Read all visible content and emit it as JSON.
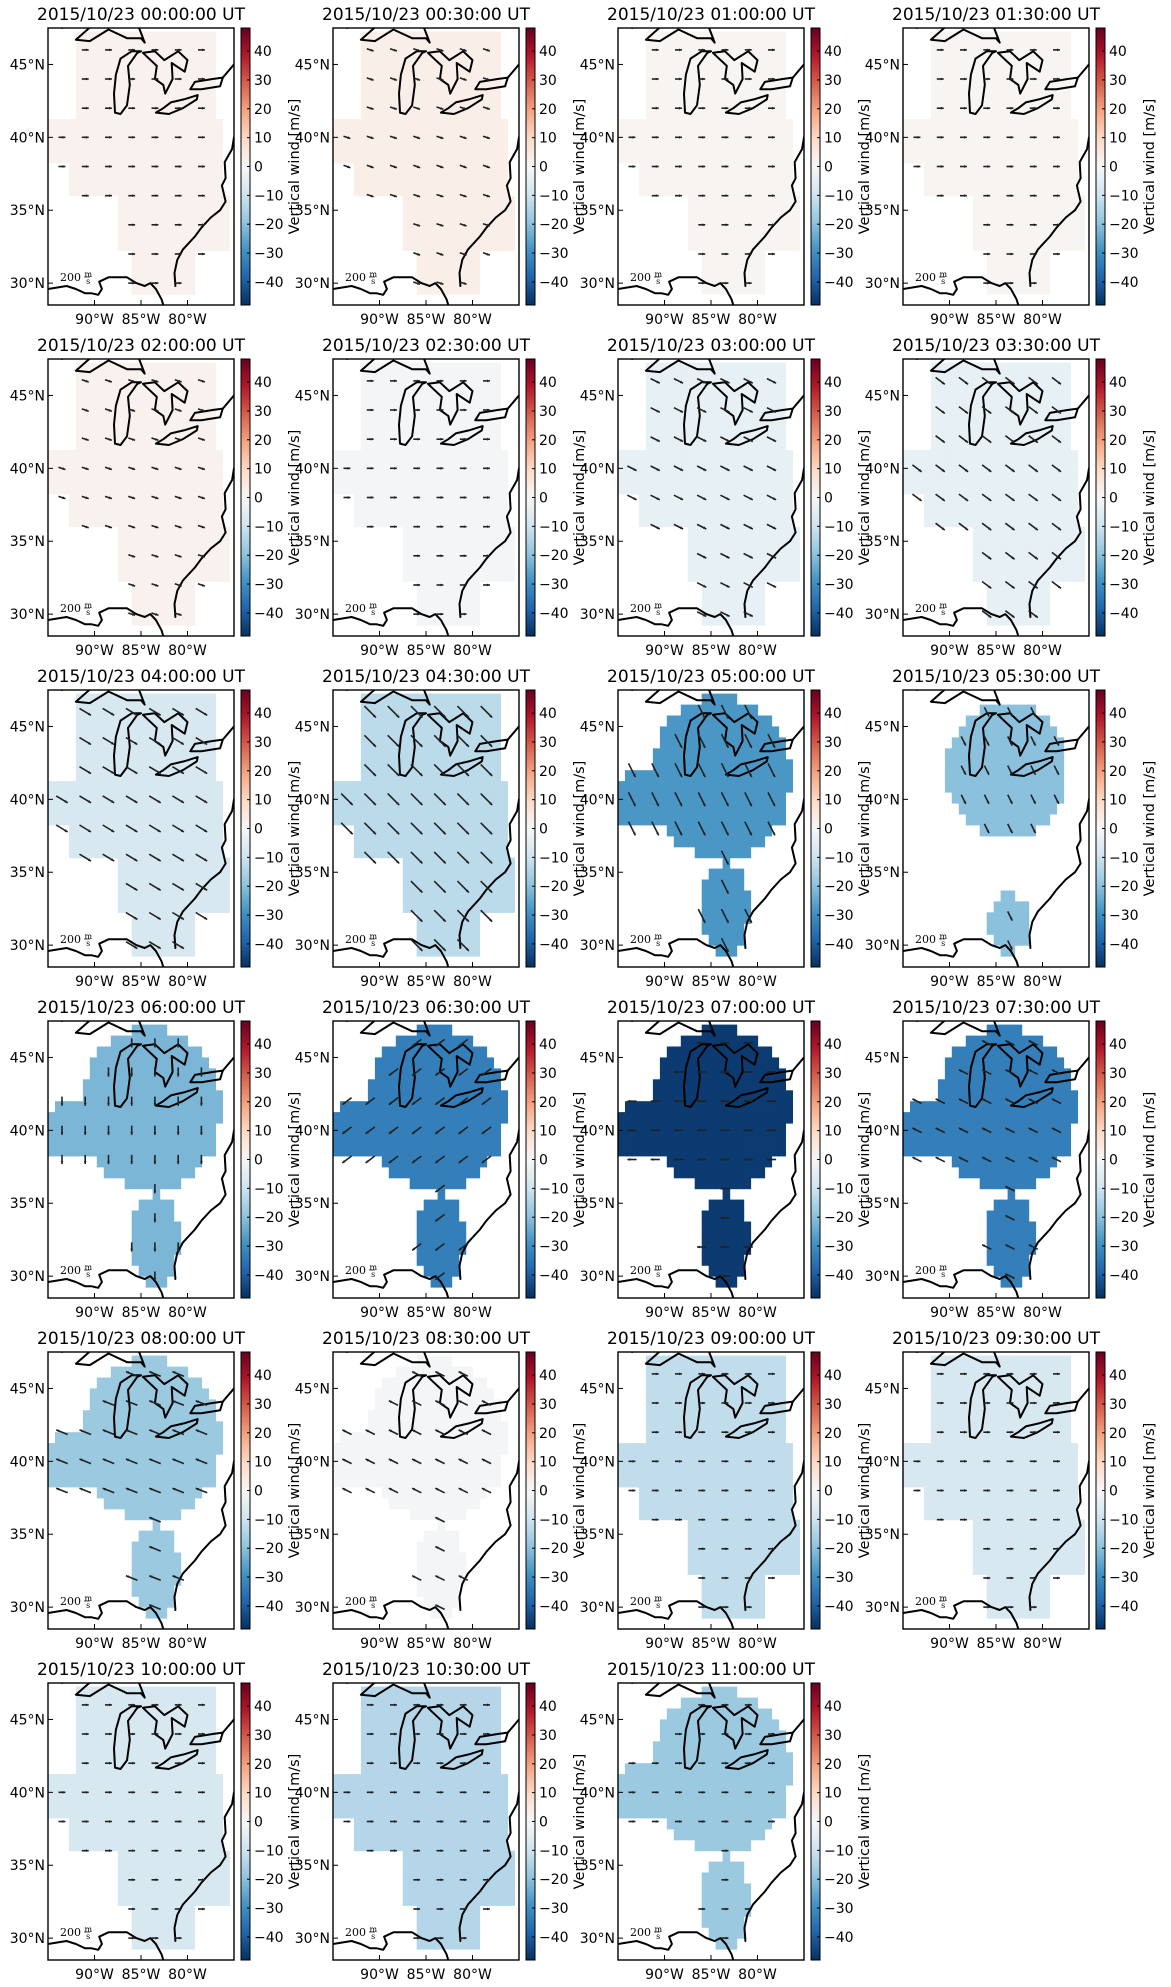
{
  "figure": {
    "colorbar": {
      "title": "Vertical wind [m/s]",
      "ticks": [
        "40",
        "30",
        "20",
        "10",
        "0",
        "−10",
        "−20",
        "−30",
        "−40"
      ],
      "range": [
        -48,
        48
      ],
      "colormap": [
        "#053061",
        "#2166ac",
        "#4393c3",
        "#92c5de",
        "#d1e5f0",
        "#f7f7f7",
        "#fddbc7",
        "#f4a582",
        "#d6604d",
        "#b2182b",
        "#67001f"
      ]
    },
    "x_ticks": [
      "90°W",
      "85°W",
      "80°W"
    ],
    "y_ticks": [
      "45°N",
      "40°N",
      "35°N",
      "30°N"
    ],
    "scale_label": "200 m/s",
    "scale_value": "200",
    "scale_unit_num": "m",
    "scale_unit_den": "s"
  },
  "chart_data": [
    {
      "type": "heatmap",
      "title": "2015/10/23 00:00:00 UT",
      "vertical_wind_ms": 2,
      "region": "full",
      "wind_u": 3,
      "wind_v": 0
    },
    {
      "type": "heatmap",
      "title": "2015/10/23 00:30:00 UT",
      "vertical_wind_ms": 3,
      "region": "full",
      "wind_u": 3,
      "wind_v": -1
    },
    {
      "type": "heatmap",
      "title": "2015/10/23 01:00:00 UT",
      "vertical_wind_ms": 1,
      "region": "full",
      "wind_u": 3,
      "wind_v": 0
    },
    {
      "type": "heatmap",
      "title": "2015/10/23 01:30:00 UT",
      "vertical_wind_ms": 1,
      "region": "full",
      "wind_u": 3,
      "wind_v": 0
    },
    {
      "type": "heatmap",
      "title": "2015/10/23 02:00:00 UT",
      "vertical_wind_ms": 2,
      "region": "full",
      "wind_u": 3,
      "wind_v": -1
    },
    {
      "type": "heatmap",
      "title": "2015/10/23 02:30:00 UT",
      "vertical_wind_ms": -1,
      "region": "full",
      "wind_u": 3,
      "wind_v": 0
    },
    {
      "type": "heatmap",
      "title": "2015/10/23 03:00:00 UT",
      "vertical_wind_ms": -4,
      "region": "full",
      "wind_u": 4,
      "wind_v": -2
    },
    {
      "type": "heatmap",
      "title": "2015/10/23 03:30:00 UT",
      "vertical_wind_ms": -4,
      "region": "full",
      "wind_u": 4,
      "wind_v": -3
    },
    {
      "type": "heatmap",
      "title": "2015/10/23 04:00:00 UT",
      "vertical_wind_ms": -8,
      "region": "full",
      "wind_u": 5,
      "wind_v": -3
    },
    {
      "type": "heatmap",
      "title": "2015/10/23 04:30:00 UT",
      "vertical_wind_ms": -13,
      "region": "full",
      "wind_u": 5,
      "wind_v": -5
    },
    {
      "type": "heatmap",
      "title": "2015/10/23 05:00:00 UT",
      "vertical_wind_ms": -28,
      "region": "split",
      "wind_u": 3,
      "wind_v": -6
    },
    {
      "type": "heatmap",
      "title": "2015/10/23 05:30:00 UT",
      "vertical_wind_ms": -20,
      "region": "split-small",
      "wind_u": 2,
      "wind_v": -4
    },
    {
      "type": "heatmap",
      "title": "2015/10/23 06:00:00 UT",
      "vertical_wind_ms": -22,
      "region": "split",
      "wind_u": 0,
      "wind_v": -4
    },
    {
      "type": "heatmap",
      "title": "2015/10/23 06:30:00 UT",
      "vertical_wind_ms": -33,
      "region": "split",
      "wind_u": -4,
      "wind_v": -3
    },
    {
      "type": "heatmap",
      "title": "2015/10/23 07:00:00 UT",
      "vertical_wind_ms": -46,
      "region": "split",
      "wind_u": -4,
      "wind_v": 0
    },
    {
      "type": "heatmap",
      "title": "2015/10/23 07:30:00 UT",
      "vertical_wind_ms": -33,
      "region": "split",
      "wind_u": -4,
      "wind_v": 2
    },
    {
      "type": "heatmap",
      "title": "2015/10/23 08:00:00 UT",
      "vertical_wind_ms": -18,
      "region": "split",
      "wind_u": -5,
      "wind_v": 2
    },
    {
      "type": "heatmap",
      "title": "2015/10/23 08:30:00 UT",
      "vertical_wind_ms": -1,
      "region": "split",
      "wind_u": -4,
      "wind_v": 2
    },
    {
      "type": "heatmap",
      "title": "2015/10/23 09:00:00 UT",
      "vertical_wind_ms": -12,
      "region": "full",
      "wind_u": 3,
      "wind_v": 0
    },
    {
      "type": "heatmap",
      "title": "2015/10/23 09:30:00 UT",
      "vertical_wind_ms": -8,
      "region": "full",
      "wind_u": 3,
      "wind_v": 0
    },
    {
      "type": "heatmap",
      "title": "2015/10/23 10:00:00 UT",
      "vertical_wind_ms": -8,
      "region": "full",
      "wind_u": 3,
      "wind_v": 0
    },
    {
      "type": "heatmap",
      "title": "2015/10/23 10:30:00 UT",
      "vertical_wind_ms": -14,
      "region": "full",
      "wind_u": 3,
      "wind_v": 0
    },
    {
      "type": "heatmap",
      "title": "2015/10/23 11:00:00 UT",
      "vertical_wind_ms": -18,
      "region": "split",
      "wind_u": 3,
      "wind_v": 0
    }
  ]
}
